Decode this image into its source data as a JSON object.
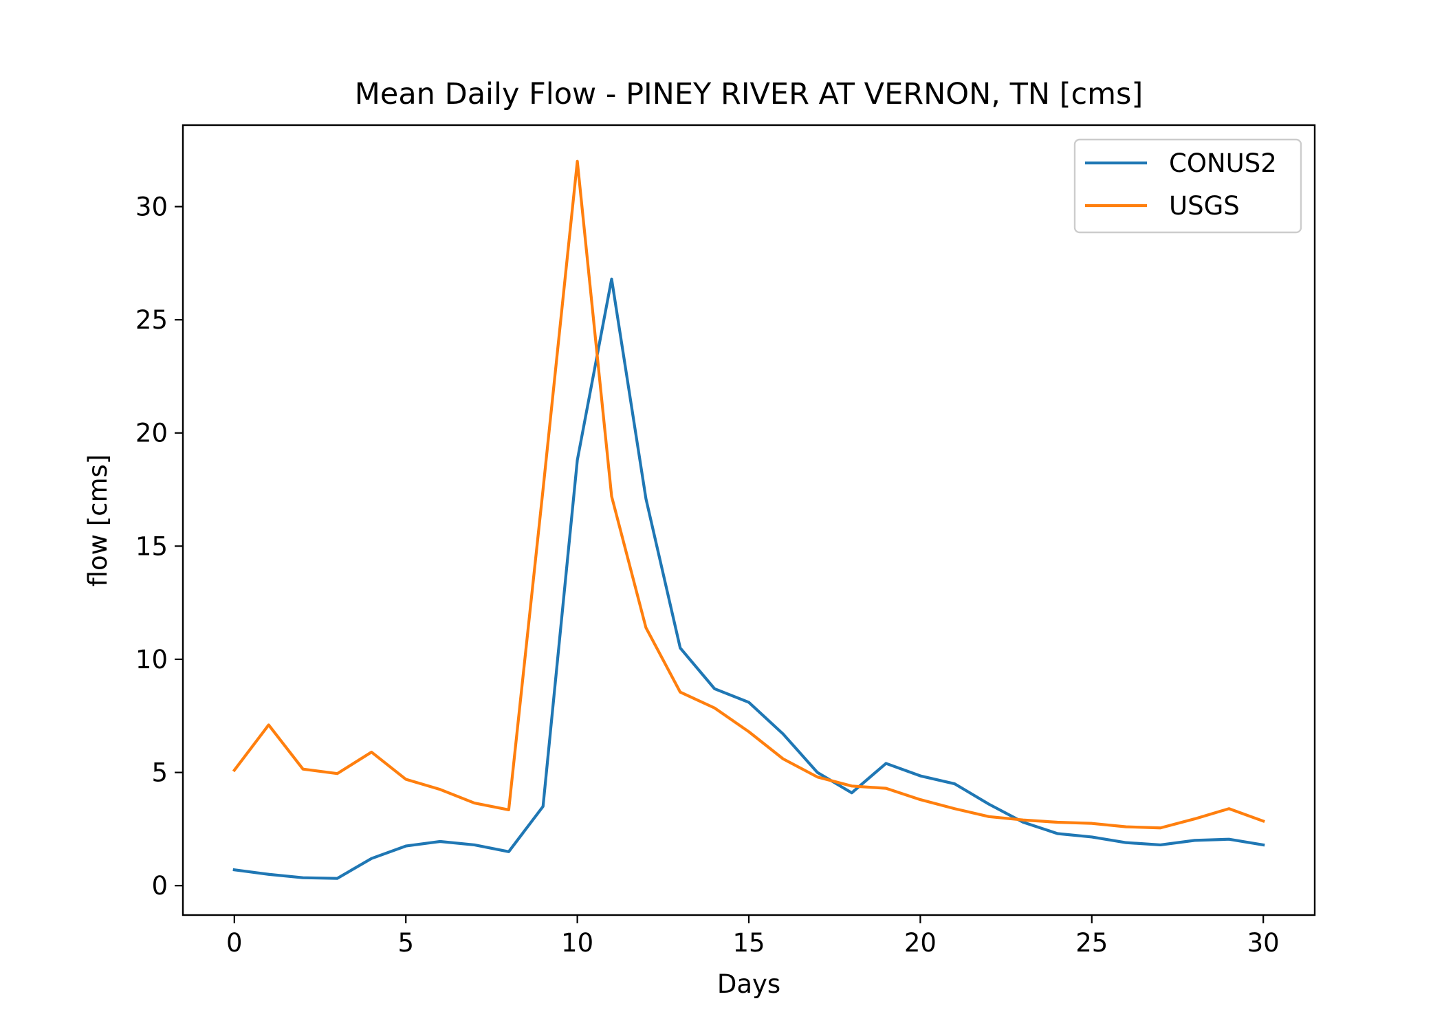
{
  "chart_data": {
    "type": "line",
    "title": "Mean Daily Flow - PINEY RIVER AT VERNON, TN [cms]",
    "xlabel": "Days",
    "ylabel": "flow [cms]",
    "xlim": [
      -1.5,
      31.5
    ],
    "ylim": [
      -1.3,
      33.6
    ],
    "xticks": [
      0,
      5,
      10,
      15,
      20,
      25,
      30
    ],
    "yticks": [
      0,
      5,
      10,
      15,
      20,
      25,
      30
    ],
    "grid": false,
    "legend_position": "top-right",
    "x": [
      0,
      1,
      2,
      3,
      4,
      5,
      6,
      7,
      8,
      9,
      10,
      11,
      12,
      13,
      14,
      15,
      16,
      17,
      18,
      19,
      20,
      21,
      22,
      23,
      24,
      25,
      26,
      27,
      28,
      29,
      30
    ],
    "series": [
      {
        "name": "CONUS2",
        "color": "#1f77b4",
        "values": [
          0.7,
          0.5,
          0.35,
          0.32,
          1.2,
          1.75,
          1.95,
          1.8,
          1.5,
          3.5,
          18.8,
          26.8,
          17.1,
          10.5,
          8.7,
          8.1,
          6.7,
          5.0,
          4.1,
          5.4,
          4.85,
          4.5,
          3.6,
          2.8,
          2.3,
          2.15,
          1.9,
          1.8,
          2.0,
          2.05,
          1.8
        ]
      },
      {
        "name": "USGS",
        "color": "#ff7f0e",
        "values": [
          5.1,
          7.1,
          5.15,
          4.95,
          5.9,
          4.7,
          4.25,
          3.65,
          3.35,
          17.5,
          32.0,
          17.2,
          11.4,
          8.55,
          7.85,
          6.8,
          5.6,
          4.8,
          4.4,
          4.3,
          3.8,
          3.4,
          3.05,
          2.9,
          2.8,
          2.75,
          2.6,
          2.55,
          2.95,
          3.4,
          2.85
        ]
      }
    ]
  }
}
